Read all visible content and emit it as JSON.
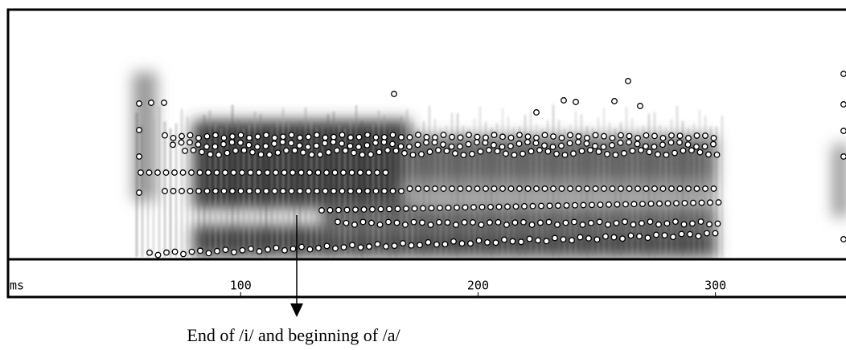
{
  "chart_data": {
    "type": "spectrogram",
    "xlabel": "ms",
    "xlim": [
      2,
      355
    ],
    "xticks": [
      100,
      200,
      300
    ],
    "annotation": "End of /i/ and beginning of /a/"
  }
}
